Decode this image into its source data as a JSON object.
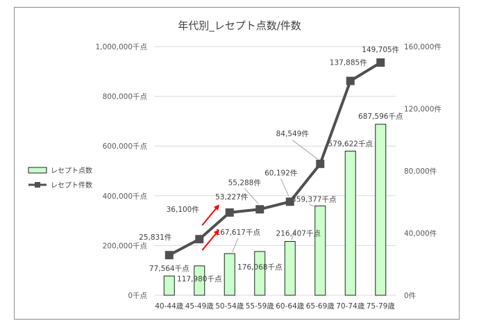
{
  "chart_data": {
    "type": "bar",
    "title": "年代別_レセプト点数/件数",
    "categories": [
      "40-44歳",
      "45-49歳",
      "50-54歳",
      "55-59歳",
      "60-64歳",
      "65-69歳",
      "70-74歳",
      "75-79歳"
    ],
    "series": [
      {
        "name": "レセプト点数",
        "type": "bar",
        "axis": "left",
        "color": "#ccffcc",
        "edge_color": "#222222",
        "values": [
          77564,
          117980,
          167617,
          176068,
          216407,
          359377,
          579622,
          687596
        ],
        "labels": [
          "77,564千点",
          "117,980千点",
          "167,617千点",
          "176,068千点",
          "216,407千点",
          "359,377千点",
          "579,622千点",
          "687,596千点"
        ]
      },
      {
        "name": "レセプト件数",
        "type": "line",
        "axis": "right",
        "color": "#505050",
        "values": [
          25831,
          36100,
          53227,
          55288,
          60192,
          84549,
          137885,
          149705
        ],
        "labels": [
          "25,831件",
          "36,100件",
          "53,227件",
          "55,288件",
          "60,192件",
          "84,549件",
          "137,885件",
          "149,705件"
        ]
      }
    ],
    "y_left": {
      "min": 0,
      "max": 1000000,
      "ticks": [
        0,
        200000,
        400000,
        600000,
        800000,
        1000000
      ],
      "tick_labels": [
        "0千点",
        "200,000千点",
        "400,000千点",
        "600,000千点",
        "800,000千点",
        "1,000,000千点"
      ]
    },
    "y_right": {
      "min": 0,
      "max": 160000,
      "ticks": [
        0,
        40000,
        80000,
        120000,
        160000
      ],
      "tick_labels": [
        "0件",
        "40,000件",
        "80,000件",
        "120,000件",
        "160,000件"
      ]
    },
    "grid": true,
    "legend_position": "left",
    "annotations": [
      {
        "shape": "arrow",
        "color": "#ff0000"
      },
      {
        "shape": "arrow",
        "color": "#ff0000"
      }
    ]
  }
}
